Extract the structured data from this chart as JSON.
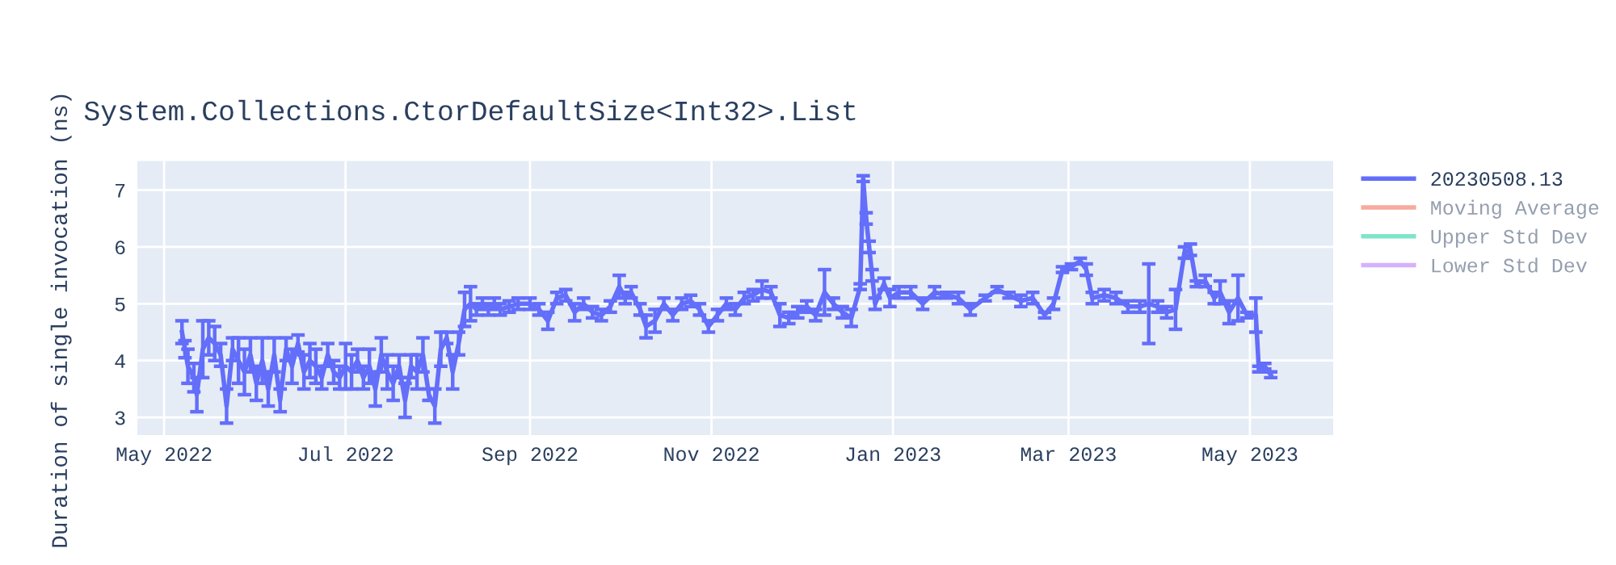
{
  "chart_data": {
    "type": "line",
    "title": "System.Collections.CtorDefaultSize<Int32>.List",
    "ylabel": "Duration of single invocation (ns)",
    "x": [
      "2022-05-07",
      "2022-05-08",
      "2022-05-09",
      "2022-05-11",
      "2022-05-12",
      "2022-05-14",
      "2022-05-16",
      "2022-05-18",
      "2022-05-20",
      "2022-05-22",
      "2022-05-24",
      "2022-05-26",
      "2022-05-28",
      "2022-05-30",
      "2022-06-01",
      "2022-06-03",
      "2022-06-05",
      "2022-06-07",
      "2022-06-09",
      "2022-06-11",
      "2022-06-13",
      "2022-06-15",
      "2022-06-17",
      "2022-06-19",
      "2022-06-21",
      "2022-06-23",
      "2022-06-25",
      "2022-06-27",
      "2022-06-29",
      "2022-07-01",
      "2022-07-03",
      "2022-07-05",
      "2022-07-07",
      "2022-07-09",
      "2022-07-11",
      "2022-07-13",
      "2022-07-15",
      "2022-07-17",
      "2022-07-19",
      "2022-07-21",
      "2022-07-23",
      "2022-07-25",
      "2022-07-27",
      "2022-07-29",
      "2022-07-31",
      "2022-08-02",
      "2022-08-04",
      "2022-08-06",
      "2022-08-08",
      "2022-08-10",
      "2022-08-12",
      "2022-08-14",
      "2022-08-16",
      "2022-08-18",
      "2022-08-20",
      "2022-08-22",
      "2022-08-25",
      "2022-08-28",
      "2022-09-01",
      "2022-09-04",
      "2022-09-07",
      "2022-09-10",
      "2022-09-13",
      "2022-09-16",
      "2022-09-19",
      "2022-09-22",
      "2022-09-25",
      "2022-09-28",
      "2022-10-01",
      "2022-10-03",
      "2022-10-05",
      "2022-10-08",
      "2022-10-10",
      "2022-10-13",
      "2022-10-16",
      "2022-10-19",
      "2022-10-22",
      "2022-10-25",
      "2022-10-28",
      "2022-10-31",
      "2022-11-03",
      "2022-11-06",
      "2022-11-09",
      "2022-11-12",
      "2022-11-15",
      "2022-11-18",
      "2022-11-21",
      "2022-11-24",
      "2022-11-27",
      "2022-11-30",
      "2022-12-03",
      "2022-12-06",
      "2022-12-09",
      "2022-12-12",
      "2022-12-15",
      "2022-12-18",
      "2022-12-21",
      "2022-12-22",
      "2022-12-23",
      "2022-12-24",
      "2022-12-25",
      "2022-12-26",
      "2022-12-29",
      "2022-12-31",
      "2023-01-03",
      "2023-01-07",
      "2023-01-11",
      "2023-01-15",
      "2023-01-19",
      "2023-01-23",
      "2023-01-27",
      "2023-02-01",
      "2023-02-05",
      "2023-02-09",
      "2023-02-13",
      "2023-02-17",
      "2023-02-21",
      "2023-02-24",
      "2023-02-27",
      "2023-03-02",
      "2023-03-05",
      "2023-03-07",
      "2023-03-09",
      "2023-03-13",
      "2023-03-17",
      "2023-03-21",
      "2023-03-25",
      "2023-03-28",
      "2023-03-31",
      "2023-04-03",
      "2023-04-06",
      "2023-04-09",
      "2023-04-11",
      "2023-04-13",
      "2023-04-16",
      "2023-04-19",
      "2023-04-21",
      "2023-04-24",
      "2023-04-27",
      "2023-04-30",
      "2023-05-03",
      "2023-05-04",
      "2023-05-06",
      "2023-05-08"
    ],
    "series": [
      {
        "name": "20230508.13",
        "color": "#636efa",
        "values": [
          4.5,
          4.2,
          3.9,
          3.7,
          3.4,
          4.2,
          4.4,
          4.3,
          4.1,
          3.2,
          4.2,
          4.0,
          3.8,
          4.1,
          3.6,
          4.0,
          3.5,
          4.1,
          3.3,
          4.2,
          3.9,
          4.3,
          3.8,
          4.0,
          3.9,
          3.7,
          4.1,
          3.8,
          3.7,
          3.9,
          3.8,
          4.0,
          3.7,
          3.9,
          3.5,
          4.1,
          3.8,
          3.6,
          3.9,
          3.3,
          3.9,
          3.8,
          4.1,
          3.4,
          3.2,
          4.2,
          4.4,
          3.8,
          4.3,
          4.9,
          5.0,
          4.9,
          5.0,
          4.9,
          5.0,
          4.9,
          4.95,
          5.0,
          5.0,
          4.9,
          4.7,
          5.1,
          5.15,
          4.85,
          5.0,
          4.85,
          4.8,
          4.95,
          5.3,
          5.1,
          5.2,
          4.9,
          4.6,
          4.7,
          5.0,
          4.8,
          5.0,
          5.05,
          4.9,
          4.6,
          4.8,
          5.0,
          4.9,
          5.1,
          5.15,
          5.25,
          5.2,
          4.8,
          4.75,
          4.85,
          4.95,
          4.8,
          5.2,
          5.0,
          4.85,
          4.75,
          5.3,
          7.2,
          6.5,
          6.0,
          5.5,
          5.0,
          5.35,
          5.1,
          5.2,
          5.2,
          5.0,
          5.2,
          5.15,
          5.1,
          4.9,
          5.1,
          5.25,
          5.15,
          5.05,
          5.1,
          4.8,
          5.0,
          5.6,
          5.65,
          5.75,
          5.6,
          5.1,
          5.15,
          5.1,
          4.95,
          4.95,
          5.0,
          4.95,
          4.85,
          4.9,
          5.9,
          5.95,
          5.35,
          5.4,
          5.1,
          5.2,
          4.85,
          5.1,
          4.8,
          4.8,
          3.85,
          3.9,
          3.75
        ],
        "errors": [
          0.2,
          0.15,
          0.3,
          0.25,
          0.3,
          0.5,
          0.3,
          0.3,
          0.2,
          0.3,
          0.2,
          0.4,
          0.4,
          0.3,
          0.3,
          0.4,
          0.3,
          0.3,
          0.2,
          0.2,
          0.3,
          0.15,
          0.3,
          0.3,
          0.3,
          0.2,
          0.2,
          0.2,
          0.2,
          0.4,
          0.3,
          0.2,
          0.2,
          0.3,
          0.3,
          0.3,
          0.3,
          0.3,
          0.2,
          0.3,
          0.2,
          0.3,
          0.3,
          0.1,
          0.3,
          0.3,
          0.1,
          0.3,
          0.2,
          0.3,
          0.3,
          0.1,
          0.1,
          0.1,
          0.1,
          0.1,
          0.1,
          0.1,
          0.1,
          0.1,
          0.15,
          0.1,
          0.1,
          0.15,
          0.1,
          0.1,
          0.1,
          0.1,
          0.2,
          0.1,
          0.1,
          0.1,
          0.2,
          0.2,
          0.1,
          0.1,
          0.1,
          0.1,
          0.1,
          0.1,
          0.1,
          0.1,
          0.1,
          0.1,
          0.1,
          0.15,
          0.1,
          0.2,
          0.1,
          0.1,
          0.1,
          0.1,
          0.4,
          0.1,
          0.1,
          0.15,
          0.05,
          0.05,
          0.1,
          0.1,
          0.1,
          0.1,
          0.1,
          0.15,
          0.1,
          0.1,
          0.1,
          0.1,
          0.05,
          0.1,
          0.1,
          0.05,
          0.05,
          0.05,
          0.1,
          0.1,
          0.05,
          0.1,
          0.05,
          0.05,
          0.05,
          0.1,
          0.1,
          0.1,
          0.1,
          0.1,
          0.1,
          0.7,
          0.1,
          0.1,
          0.35,
          0.1,
          0.1,
          0.05,
          0.1,
          0.1,
          0.2,
          0.2,
          0.4,
          0.05,
          0.3,
          0.05,
          0.05,
          0.05
        ]
      },
      {
        "name": "Moving Average",
        "color": "#ef553b",
        "values": [
          null,
          null,
          null,
          null,
          null,
          null,
          null,
          null,
          null,
          null,
          null,
          null,
          null,
          null,
          null,
          null,
          null,
          null,
          null,
          null,
          null,
          null,
          null,
          null,
          null,
          null,
          null,
          null,
          null,
          null,
          null,
          null,
          null,
          null,
          null,
          null,
          null,
          null,
          null,
          null,
          null,
          null,
          null,
          null,
          null,
          null,
          null,
          null,
          null,
          null,
          null,
          null,
          null,
          null,
          null,
          null,
          null,
          null,
          null,
          null,
          null,
          null,
          null,
          null,
          null,
          null,
          null,
          null,
          null,
          null,
          null,
          null,
          null,
          null,
          null,
          null,
          null,
          null,
          null,
          null,
          null,
          null,
          null,
          null,
          null,
          null,
          null,
          null,
          null,
          null,
          null,
          null,
          null,
          null,
          null,
          null,
          null,
          null,
          null,
          null,
          null,
          null,
          null,
          null,
          null,
          null,
          null,
          null,
          null,
          null,
          null,
          null,
          null,
          null,
          null,
          null,
          null,
          null,
          null,
          null,
          null,
          null,
          null,
          null,
          null,
          null,
          null,
          null,
          null,
          null,
          null,
          null,
          null,
          null,
          null,
          null,
          null,
          null,
          null,
          null,
          null,
          null,
          null,
          null
        ]
      },
      {
        "name": "Upper Std Dev",
        "color": "#00cc96",
        "values": [
          null,
          null,
          null,
          null,
          null,
          null,
          null,
          null,
          null,
          null,
          null,
          null,
          null,
          null,
          null,
          null,
          null,
          null,
          null,
          null,
          null,
          null,
          null,
          null,
          null,
          null,
          null,
          null,
          null,
          null,
          null,
          null,
          null,
          null,
          null,
          null,
          null,
          null,
          null,
          null,
          null,
          null,
          null,
          null,
          null,
          null,
          null,
          null,
          null,
          null,
          null,
          null,
          null,
          null,
          null,
          null,
          null,
          null,
          null,
          null,
          null,
          null,
          null,
          null,
          null,
          null,
          null,
          null,
          null,
          null,
          null,
          null,
          null,
          null,
          null,
          null,
          null,
          null,
          null,
          null,
          null,
          null,
          null,
          null,
          null,
          null,
          null,
          null,
          null,
          null,
          null,
          null,
          null,
          null,
          null,
          null,
          null,
          null,
          null,
          null,
          null,
          null,
          null,
          null,
          null,
          null,
          null,
          null,
          null,
          null,
          null,
          null,
          null,
          null,
          null,
          null,
          null,
          null,
          null,
          null,
          null,
          null,
          null,
          null,
          null,
          null,
          null,
          null,
          null,
          null,
          null,
          null,
          null,
          null,
          null,
          null,
          null,
          null,
          null,
          null,
          null,
          null,
          null,
          null
        ]
      },
      {
        "name": "Lower Std Dev",
        "color": "#ab63fa",
        "values": [
          null,
          null,
          null,
          null,
          null,
          null,
          null,
          null,
          null,
          null,
          null,
          null,
          null,
          null,
          null,
          null,
          null,
          null,
          null,
          null,
          null,
          null,
          null,
          null,
          null,
          null,
          null,
          null,
          null,
          null,
          null,
          null,
          null,
          null,
          null,
          null,
          null,
          null,
          null,
          null,
          null,
          null,
          null,
          null,
          null,
          null,
          null,
          null,
          null,
          null,
          null,
          null,
          null,
          null,
          null,
          null,
          null,
          null,
          null,
          null,
          null,
          null,
          null,
          null,
          null,
          null,
          null,
          null,
          null,
          null,
          null,
          null,
          null,
          null,
          null,
          null,
          null,
          null,
          null,
          null,
          null,
          null,
          null,
          null,
          null,
          null,
          null,
          null,
          null,
          null,
          null,
          null,
          null,
          null,
          null,
          null,
          null,
          null,
          null,
          null,
          null,
          null,
          null,
          null,
          null,
          null,
          null,
          null,
          null,
          null,
          null,
          null,
          null,
          null,
          null,
          null,
          null,
          null,
          null,
          null,
          null,
          null,
          null,
          null,
          null,
          null,
          null,
          null,
          null,
          null,
          null,
          null,
          null,
          null,
          null,
          null,
          null,
          null,
          null,
          null,
          null,
          null,
          null,
          null
        ]
      }
    ],
    "xlim": [
      "2022-04-22",
      "2023-05-29"
    ],
    "ylim": [
      2.69,
      7.51
    ],
    "xticks": [
      {
        "value": "2022-05-01",
        "label": "May 2022"
      },
      {
        "value": "2022-07-01",
        "label": "Jul 2022"
      },
      {
        "value": "2022-09-01",
        "label": "Sep 2022"
      },
      {
        "value": "2022-11-01",
        "label": "Nov 2022"
      },
      {
        "value": "2023-01-01",
        "label": "Jan 2023"
      },
      {
        "value": "2023-03-01",
        "label": "Mar 2023"
      },
      {
        "value": "2023-05-01",
        "label": "May 2023"
      }
    ],
    "yticks": [
      3,
      4,
      5,
      6,
      7
    ],
    "grid": true,
    "legend": "top right",
    "marker": "none",
    "line_style": "solid"
  }
}
